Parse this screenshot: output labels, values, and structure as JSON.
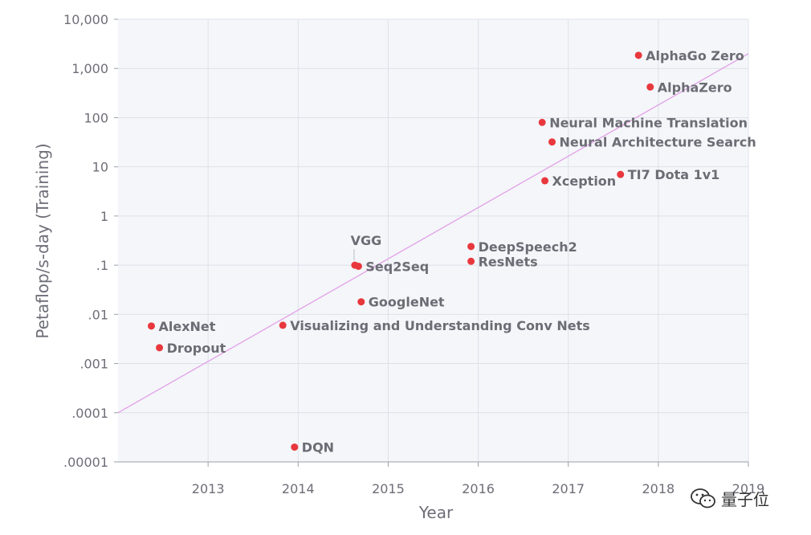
{
  "chart_data": {
    "type": "scatter",
    "title": "",
    "xlabel": "Year",
    "ylabel": "Petaflop/s-day (Training)",
    "yscale": "log",
    "xlim": [
      2012.0,
      2019.0
    ],
    "ylim": [
      1e-05,
      10000
    ],
    "grid": true,
    "x_ticks": [
      {
        "value": 2013,
        "label": "2013"
      },
      {
        "value": 2014,
        "label": "2014"
      },
      {
        "value": 2015,
        "label": "2015"
      },
      {
        "value": 2016,
        "label": "2016"
      },
      {
        "value": 2017,
        "label": "2017"
      },
      {
        "value": 2018,
        "label": "2018"
      },
      {
        "value": 2019,
        "label": "2019"
      }
    ],
    "y_ticks": [
      {
        "value": 10000,
        "label": "10,000"
      },
      {
        "value": 1000,
        "label": "1,000"
      },
      {
        "value": 100,
        "label": "100"
      },
      {
        "value": 10,
        "label": "10"
      },
      {
        "value": 1,
        "label": "1"
      },
      {
        "value": 0.1,
        "label": ".1"
      },
      {
        "value": 0.01,
        "label": ".01"
      },
      {
        "value": 0.001,
        "label": ".001"
      },
      {
        "value": 0.0001,
        "label": ".0001"
      },
      {
        "value": 1e-05,
        "label": ".00001"
      }
    ],
    "trend_line": {
      "x": [
        2012.0,
        2019.0
      ],
      "y": [
        0.0001,
        2000
      ],
      "color": "#e3a0e6"
    },
    "point_color": "#e8383d",
    "points": [
      {
        "name": "AlexNet",
        "x": 2012.37,
        "y": 0.0058,
        "label_pos": "right"
      },
      {
        "name": "Dropout",
        "x": 2012.46,
        "y": 0.0021,
        "label_pos": "right"
      },
      {
        "name": "Visualizing and Understanding Conv Nets",
        "x": 2013.83,
        "y": 0.006,
        "label_pos": "right"
      },
      {
        "name": "DQN",
        "x": 2013.96,
        "y": 2e-05,
        "label_pos": "right"
      },
      {
        "name": "VGG",
        "x": 2014.63,
        "y": 0.1,
        "label_pos": "above"
      },
      {
        "name": "Seq2Seq",
        "x": 2014.67,
        "y": 0.095,
        "label_pos": "right"
      },
      {
        "name": "GoogleNet",
        "x": 2014.7,
        "y": 0.018,
        "label_pos": "right"
      },
      {
        "name": "DeepSpeech2",
        "x": 2015.92,
        "y": 0.24,
        "label_pos": "right"
      },
      {
        "name": "ResNets",
        "x": 2015.92,
        "y": 0.12,
        "label_pos": "right"
      },
      {
        "name": "Neural Machine Translation",
        "x": 2016.71,
        "y": 80,
        "label_pos": "right"
      },
      {
        "name": "Neural Architecture Search",
        "x": 2016.82,
        "y": 32,
        "label_pos": "right"
      },
      {
        "name": "Xception",
        "x": 2016.74,
        "y": 5.2,
        "label_pos": "right"
      },
      {
        "name": "TI7 Dota 1v1",
        "x": 2017.58,
        "y": 7,
        "label_pos": "right"
      },
      {
        "name": "AlphaGo Zero",
        "x": 2017.78,
        "y": 1850,
        "label_pos": "right"
      },
      {
        "name": "AlphaZero",
        "x": 2017.91,
        "y": 420,
        "label_pos": "right"
      }
    ]
  },
  "watermark": {
    "text": "量子位",
    "icon": "wechat-icon"
  }
}
